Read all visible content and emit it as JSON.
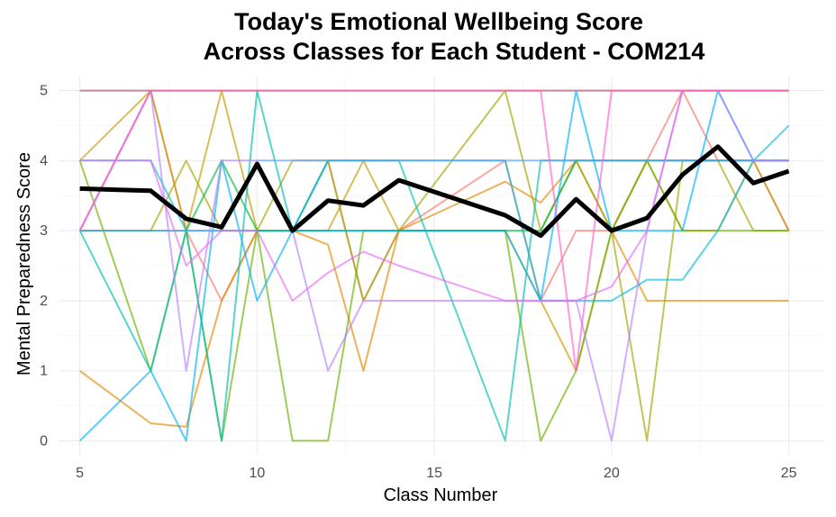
{
  "chart_data": {
    "type": "line",
    "title_line1": "Today's Emotional Wellbeing Score",
    "title_line2": "Across Classes for Each Student - COM214",
    "xlabel": "Class Number",
    "ylabel": "Mental Preparedness Score",
    "xlim": [
      4.4,
      26
    ],
    "ylim": [
      -0.2,
      5.2
    ],
    "x_ticks": [
      5,
      10,
      15,
      20,
      25
    ],
    "y_ticks": [
      0,
      1,
      2,
      3,
      4,
      5
    ],
    "grid": true,
    "x": [
      5,
      7,
      8,
      9,
      10,
      11,
      12,
      13,
      14,
      17,
      18,
      19,
      20,
      21,
      22,
      23,
      24,
      25
    ],
    "mean_series": {
      "color": "#000000",
      "values": [
        3.6,
        3.57,
        3.17,
        3.05,
        3.95,
        3.0,
        3.43,
        3.36,
        3.72,
        3.22,
        2.93,
        3.45,
        3.0,
        3.18,
        3.8,
        4.2,
        3.68,
        3.85
      ]
    },
    "student_series": [
      {
        "color": "#F8766D",
        "values": [
          3,
          5,
          3,
          2,
          3,
          3,
          4,
          2,
          3,
          4,
          2,
          3,
          3,
          4,
          5,
          4,
          4,
          3
        ]
      },
      {
        "color": "#E58700",
        "values": [
          1,
          0.25,
          0.2,
          2,
          3,
          3,
          2.8,
          1,
          3,
          3.7,
          3.4,
          4,
          3,
          2,
          2,
          2,
          2,
          2
        ]
      },
      {
        "color": "#C99800",
        "values": [
          4,
          5,
          3,
          5,
          3,
          3,
          3,
          4,
          3,
          3,
          2,
          1,
          3,
          4,
          3,
          3,
          4,
          3
        ]
      },
      {
        "color": "#A3A500",
        "values": [
          3,
          3,
          4,
          3,
          3,
          4,
          4,
          2,
          3,
          5,
          3,
          4,
          3,
          0,
          4,
          4,
          3,
          3
        ]
      },
      {
        "color": "#6BB100",
        "values": [
          4,
          1,
          3,
          0,
          3,
          0,
          0,
          3,
          3,
          3,
          0,
          1,
          3,
          4,
          3,
          3,
          3,
          3
        ]
      },
      {
        "color": "#00BA38",
        "values": [
          3,
          3,
          3,
          4,
          3,
          3,
          3,
          3,
          3,
          3,
          3,
          4,
          4,
          4,
          4,
          4,
          4,
          4
        ]
      },
      {
        "color": "#00BF7D",
        "values": [
          5,
          5,
          5,
          5,
          5,
          5,
          5,
          5,
          5,
          5,
          5,
          5,
          5,
          5,
          5,
          5,
          5,
          5
        ]
      },
      {
        "color": "#00C0AF",
        "values": [
          3,
          1,
          3,
          0,
          5,
          3,
          4,
          4,
          4,
          0,
          4,
          4,
          4,
          4,
          4,
          4,
          4,
          4
        ]
      },
      {
        "color": "#00BCD8",
        "values": [
          4,
          4,
          3,
          3,
          3,
          3,
          4,
          4,
          4,
          4,
          2,
          2,
          2,
          2.3,
          2.3,
          3,
          4,
          4.5
        ]
      },
      {
        "color": "#00B0F6",
        "values": [
          0,
          1,
          0,
          4,
          2,
          3,
          3,
          3,
          3,
          3,
          2,
          5,
          3,
          3,
          3,
          5,
          4,
          4
        ]
      },
      {
        "color": "#619CFF",
        "values": [
          3,
          3,
          3,
          3,
          4,
          4,
          4,
          4,
          4,
          4,
          4,
          4,
          4,
          4,
          4,
          4,
          4,
          4
        ]
      },
      {
        "color": "#B983FF",
        "values": [
          3,
          5,
          1,
          4,
          4,
          3,
          1,
          2,
          2,
          2,
          2,
          2,
          0,
          3,
          5,
          5,
          4,
          4
        ]
      },
      {
        "color": "#E76BF3",
        "values": [
          4,
          4,
          2.5,
          3,
          3,
          2,
          2.4,
          2.7,
          2.5,
          2,
          2,
          2,
          2.2,
          3,
          5,
          5,
          5,
          5
        ]
      },
      {
        "color": "#FD61D1",
        "values": [
          3,
          5,
          5,
          5,
          5,
          5,
          5,
          5,
          5,
          5,
          5,
          1,
          5,
          5,
          5,
          5,
          5,
          5
        ]
      },
      {
        "color": "#FF67A4",
        "values": [
          5,
          5,
          5,
          5,
          5,
          5,
          5,
          5,
          5,
          5,
          5,
          5,
          5,
          5,
          5,
          5,
          5,
          5
        ]
      }
    ]
  }
}
